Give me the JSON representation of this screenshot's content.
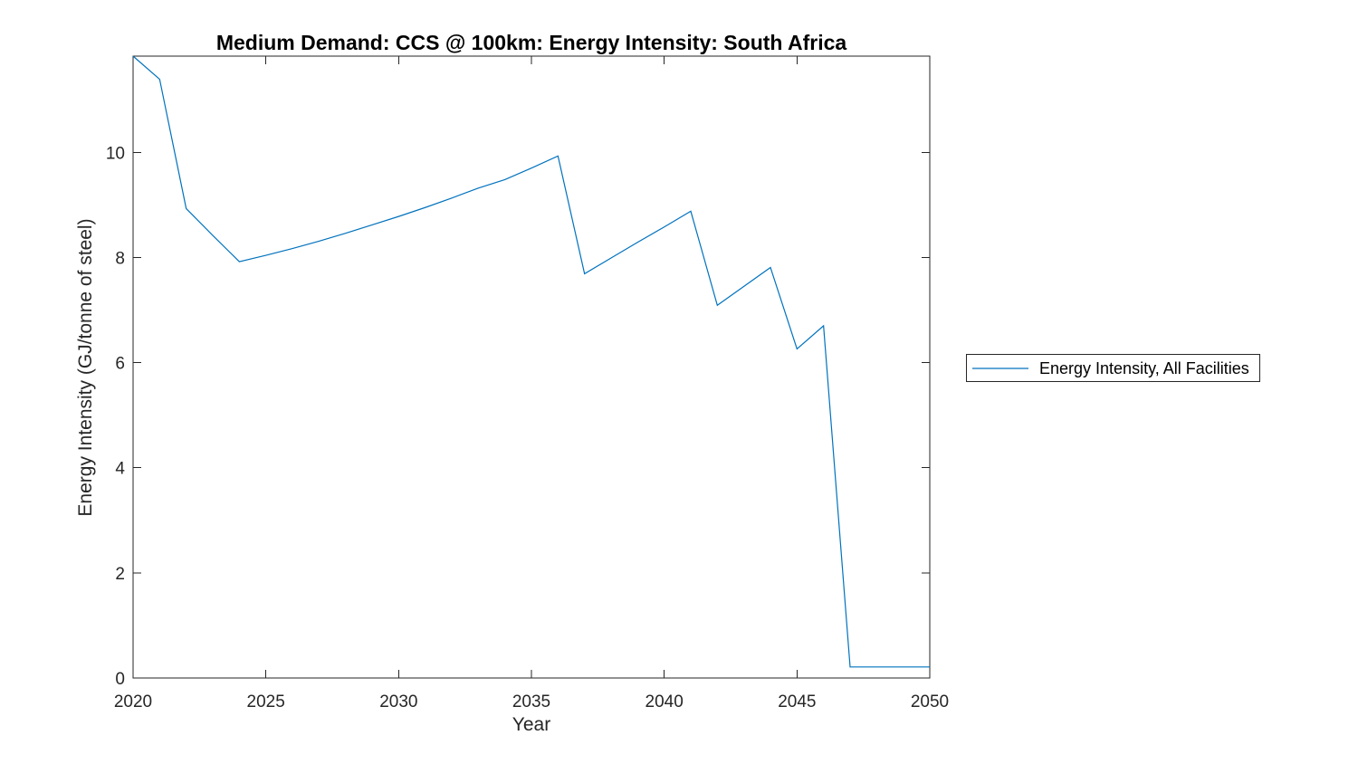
{
  "figure": {
    "background_color": "#ffffff",
    "axis_color": "#262626",
    "text_color": "#000000"
  },
  "chart_data": {
    "type": "line",
    "title": "Medium Demand: CCS @ 100km: Energy Intensity: South Africa",
    "xlabel": "Year",
    "ylabel": "Energy Intensity (GJ/tonne of steel)",
    "xlim": [
      2020,
      2050
    ],
    "ylim": [
      0,
      11.83
    ],
    "x_ticks": [
      2020,
      2025,
      2030,
      2035,
      2040,
      2045,
      2050
    ],
    "y_ticks": [
      0,
      2,
      4,
      6,
      8,
      10
    ],
    "grid": false,
    "box": true,
    "legend_position": "outside-right",
    "series": [
      {
        "name": "Energy Intensity, All Facilities",
        "color": "#0072BD",
        "x": [
          2020,
          2021,
          2022,
          2023,
          2024,
          2025,
          2026,
          2027,
          2028,
          2029,
          2030,
          2031,
          2032,
          2033,
          2034,
          2035,
          2036,
          2037,
          2038,
          2039,
          2040,
          2041,
          2042,
          2043,
          2044,
          2045,
          2046,
          2047,
          2048,
          2049,
          2050
        ],
        "y": [
          11.83,
          11.39,
          8.93,
          8.42,
          7.92,
          8.04,
          8.17,
          8.31,
          8.46,
          8.62,
          8.78,
          8.95,
          9.13,
          9.32,
          9.48,
          9.7,
          9.93,
          7.69,
          7.99,
          8.29,
          8.58,
          8.88,
          7.09,
          7.45,
          7.81,
          6.26,
          6.7,
          0.21,
          0.21,
          0.21,
          0.21
        ]
      }
    ]
  }
}
